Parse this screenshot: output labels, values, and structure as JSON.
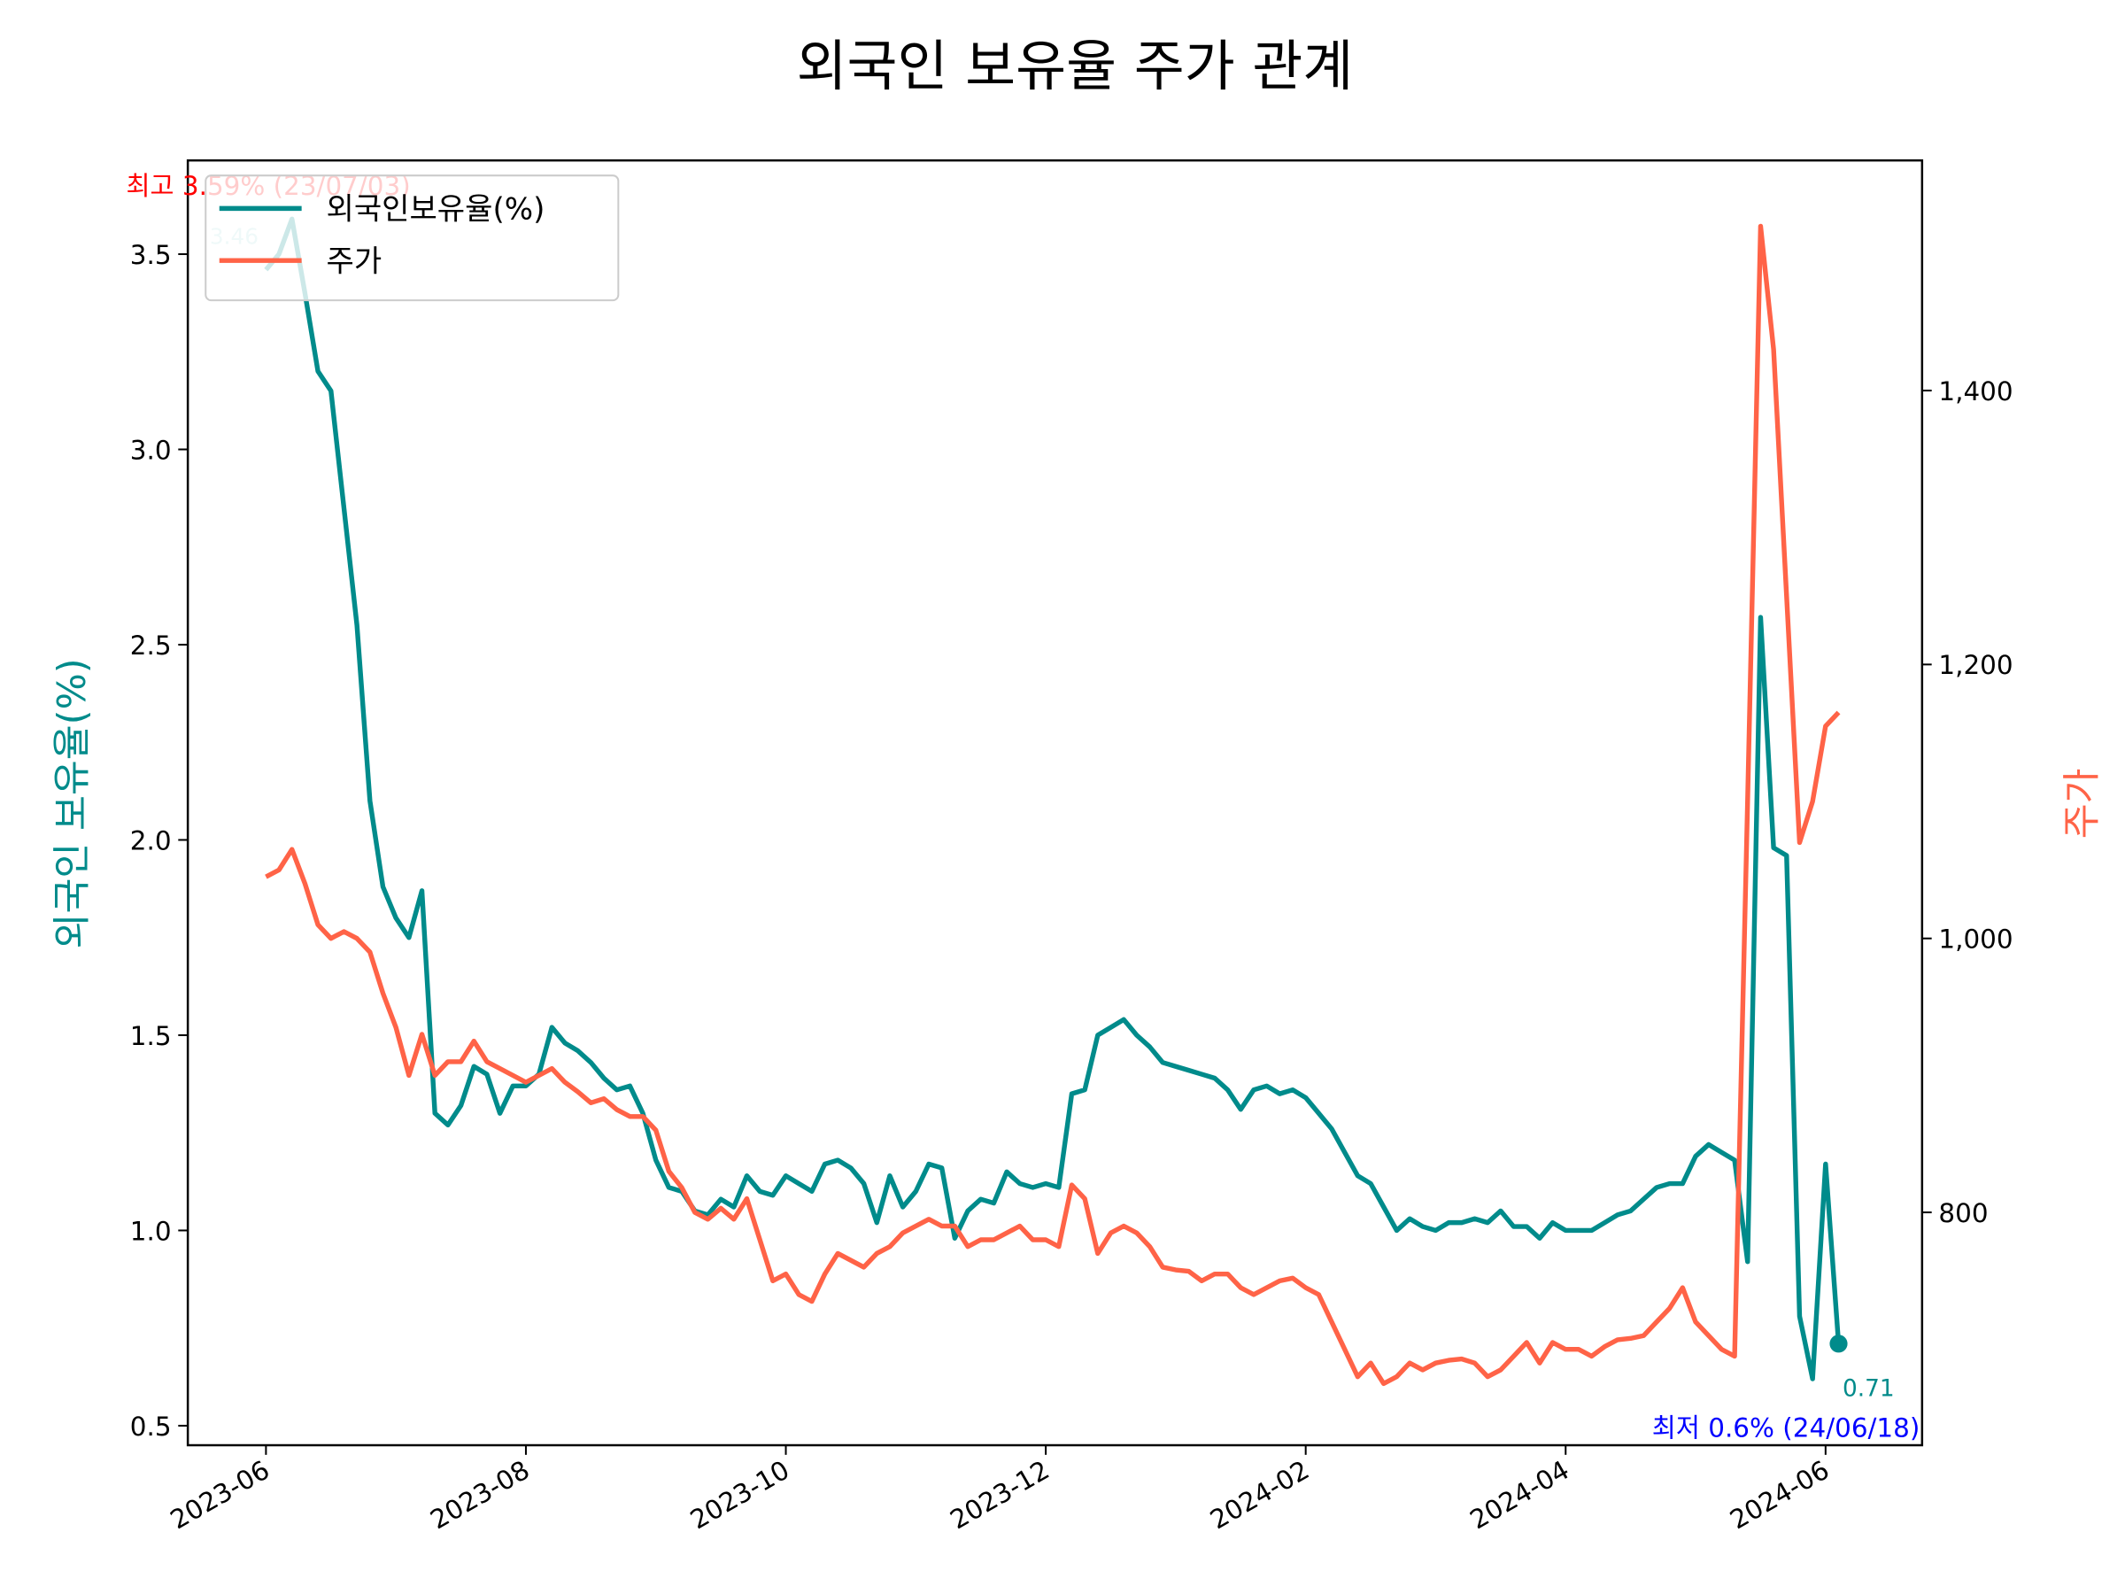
{
  "chart_data": {
    "type": "line",
    "title": "외국인 보유율 주가 관계",
    "ylabel": "외국인 보유율(%)",
    "y2label": "주가",
    "categories": [
      "2023-06",
      null,
      null,
      null,
      null,
      null,
      null,
      null,
      null,
      null,
      null,
      null,
      null,
      null,
      null,
      null,
      null,
      null,
      null,
      null,
      "2023-08",
      null,
      null,
      null,
      null,
      null,
      null,
      null,
      null,
      null,
      null,
      null,
      null,
      null,
      null,
      null,
      null,
      null,
      null,
      null,
      "2023-10",
      null,
      null,
      null,
      null,
      null,
      null,
      null,
      null,
      null,
      null,
      null,
      null,
      null,
      null,
      null,
      null,
      null,
      null,
      null,
      "2023-12",
      null,
      null,
      null,
      null,
      null,
      null,
      null,
      null,
      null,
      null,
      null,
      null,
      null,
      null,
      null,
      null,
      null,
      null,
      null,
      "2024-02",
      null,
      null,
      null,
      null,
      null,
      null,
      null,
      null,
      null,
      null,
      null,
      null,
      null,
      null,
      null,
      null,
      null,
      null,
      null,
      "2024-04",
      null,
      null,
      null,
      null,
      null,
      null,
      null,
      null,
      null,
      null,
      null,
      null,
      null,
      null,
      null,
      null,
      null,
      null,
      null,
      "2024-06",
      null
    ],
    "series": [
      {
        "name": "외국인보유율(%)",
        "color": "#008b8b",
        "values": [
          3.46,
          3.5,
          3.59,
          3.4,
          3.2,
          3.15,
          2.85,
          2.55,
          2.1,
          1.88,
          1.8,
          1.75,
          1.87,
          1.3,
          1.27,
          1.32,
          1.42,
          1.4,
          1.3,
          1.37,
          1.37,
          1.4,
          1.52,
          1.48,
          1.46,
          1.43,
          1.39,
          1.36,
          1.37,
          1.3,
          1.18,
          1.11,
          1.1,
          1.05,
          1.04,
          1.08,
          1.06,
          1.14,
          1.1,
          1.09,
          1.14,
          1.12,
          1.1,
          1.17,
          1.18,
          1.16,
          1.12,
          1.02,
          1.14,
          1.06,
          1.1,
          1.17,
          1.16,
          0.98,
          1.05,
          1.08,
          1.07,
          1.15,
          1.12,
          1.11,
          1.12,
          1.11,
          1.35,
          1.36,
          1.5,
          1.52,
          1.54,
          1.5,
          1.47,
          1.43,
          1.42,
          1.41,
          1.4,
          1.39,
          1.36,
          1.31,
          1.36,
          1.37,
          1.35,
          1.36,
          1.34,
          1.3,
          1.26,
          1.2,
          1.14,
          1.12,
          1.06,
          1.0,
          1.03,
          1.01,
          1.0,
          1.02,
          1.02,
          1.03,
          1.02,
          1.05,
          1.01,
          1.01,
          0.98,
          1.02,
          1.0,
          1.0,
          1.0,
          1.02,
          1.04,
          1.05,
          1.08,
          1.11,
          1.12,
          1.12,
          1.19,
          1.22,
          1.2,
          1.18,
          0.92,
          2.57,
          1.98,
          1.96,
          0.78,
          0.62,
          1.17,
          0.71
        ]
      },
      {
        "name": "주가",
        "color": "#ff6347",
        "axis": "y2",
        "values": [
          1045,
          1050,
          1065,
          1040,
          1010,
          1000,
          1005,
          1000,
          990,
          960,
          935,
          900,
          930,
          900,
          910,
          910,
          925,
          910,
          905,
          900,
          895,
          900,
          905,
          895,
          888,
          880,
          883,
          875,
          870,
          870,
          860,
          830,
          818,
          800,
          795,
          803,
          795,
          810,
          780,
          750,
          755,
          740,
          735,
          755,
          770,
          765,
          760,
          770,
          775,
          785,
          790,
          795,
          790,
          790,
          775,
          780,
          780,
          785,
          790,
          780,
          780,
          775,
          820,
          810,
          770,
          785,
          790,
          785,
          775,
          760,
          758,
          757,
          750,
          755,
          755,
          745,
          740,
          745,
          750,
          752,
          745,
          740,
          720,
          700,
          680,
          690,
          675,
          680,
          690,
          685,
          690,
          692,
          693,
          690,
          680,
          685,
          695,
          705,
          690,
          705,
          700,
          700,
          695,
          702,
          707,
          708,
          710,
          720,
          730,
          745,
          720,
          710,
          700,
          695,
          1100,
          1520,
          1430,
          1250,
          1070,
          1100,
          1155,
          1165
        ]
      }
    ],
    "ylim": [
      0.45,
      3.74
    ],
    "yticks": [
      0.5,
      {
        "value": 1,
        "label": "1.0"
      },
      1.5,
      {
        "value": 2,
        "label": "2.0"
      },
      2.5,
      {
        "value": 3,
        "label": "3.0"
      },
      3.5
    ],
    "y2lim": [
      630,
      1568
    ],
    "y2ticks": [
      800,
      {
        "value": 1000,
        "label": "1,000"
      },
      {
        "value": 1200,
        "label": "1,200"
      },
      {
        "value": 1400,
        "label": "1,400"
      }
    ],
    "legend": "upper left",
    "annotations": [
      {
        "text": "최고 3.59% (23/07/03)",
        "color": "#ff0000"
      },
      {
        "text": "3.46",
        "color": "#b0e0e0"
      },
      {
        "text": "0.71",
        "color": "#008b8b"
      },
      {
        "text": "최저 0.6% (24/06/18)",
        "color": "#0000ff"
      }
    ]
  }
}
